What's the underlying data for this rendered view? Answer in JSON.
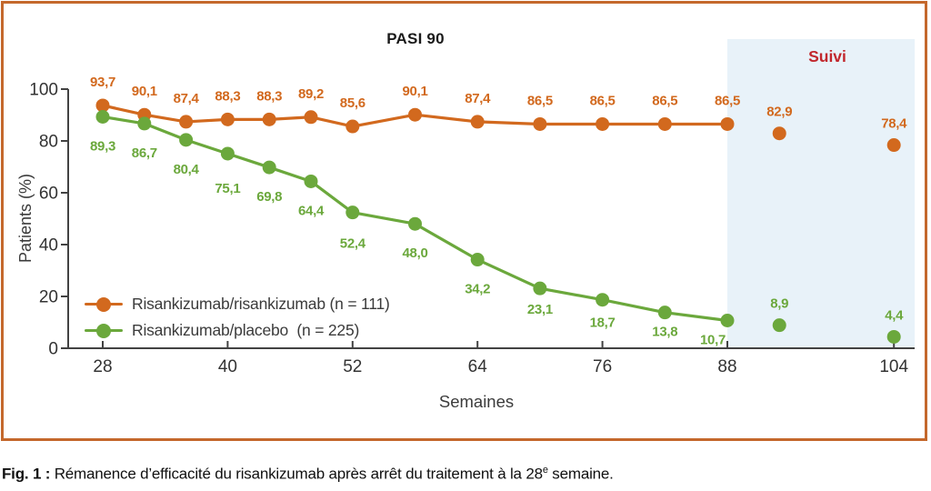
{
  "caption": {
    "bold": "Fig. 1 :",
    "text_before_sup": " Rémanence d’efficacité du risankizumab après arrêt du traitement à la 28",
    "sup": "e",
    "text_after_sup": " semaine."
  },
  "colors": {
    "frame_border": "#c4682c",
    "axis": "#424242",
    "tick_text": "#333333",
    "followup_fill": "#e8f2f9",
    "followup_label": "#c1272d",
    "series_orange": "#d2691e",
    "series_green": "#6ba83c"
  },
  "chart_data": {
    "type": "line",
    "title": "PASI 90",
    "xlabel": "Semaines",
    "ylabel": "Patients (%)",
    "x_ticks": [
      28,
      40,
      52,
      64,
      76,
      88,
      104
    ],
    "y_ticks": [
      0,
      20,
      40,
      60,
      80,
      100
    ],
    "xlim": [
      24.7,
      106
    ],
    "ylim": [
      0,
      100
    ],
    "grid": false,
    "legend_position": "inside-lower-left",
    "followup": {
      "label": "Suivi",
      "start_week": 88,
      "end_week": 106,
      "fill": "#e8f2f9",
      "label_color": "#c1272d"
    },
    "series": [
      {
        "name": "Risankizumab/risankizumab (n = 111)",
        "color": "#d2691e",
        "label_position": "above",
        "points": [
          {
            "week": 28,
            "value": 93.7,
            "label": "93,7"
          },
          {
            "week": 32,
            "value": 90.1,
            "label": "90,1"
          },
          {
            "week": 36,
            "value": 87.4,
            "label": "87,4"
          },
          {
            "week": 40,
            "value": 88.3,
            "label": "88,3"
          },
          {
            "week": 44,
            "value": 88.3,
            "label": "88,3"
          },
          {
            "week": 48,
            "value": 89.2,
            "label": "89,2"
          },
          {
            "week": 52,
            "value": 85.6,
            "label": "85,6"
          },
          {
            "week": 58,
            "value": 90.1,
            "label": "90,1"
          },
          {
            "week": 64,
            "value": 87.4,
            "label": "87,4"
          },
          {
            "week": 70,
            "value": 86.5,
            "label": "86,5"
          },
          {
            "week": 76,
            "value": 86.5,
            "label": "86,5"
          },
          {
            "week": 82,
            "value": 86.5,
            "label": "86,5"
          },
          {
            "week": 88,
            "value": 86.5,
            "label": "86,5"
          }
        ],
        "followup_points": [
          {
            "week": 93,
            "value": 82.9,
            "label": "82,9"
          },
          {
            "week": 104,
            "value": 78.4,
            "label": "78,4"
          }
        ]
      },
      {
        "name": "Risankizumab/placebo  (n = 225)",
        "color": "#6ba83c",
        "label_position": "below",
        "points": [
          {
            "week": 28,
            "value": 89.3,
            "label": "89,3"
          },
          {
            "week": 32,
            "value": 86.7,
            "label": "86,7"
          },
          {
            "week": 36,
            "value": 80.4,
            "label": "80,4"
          },
          {
            "week": 40,
            "value": 75.1,
            "label": "75,1",
            "label_dy": 38
          },
          {
            "week": 44,
            "value": 69.8,
            "label": "69,8"
          },
          {
            "week": 48,
            "value": 64.4,
            "label": "64,4"
          },
          {
            "week": 52,
            "value": 52.4,
            "label": "52,4",
            "label_dy": 34
          },
          {
            "week": 58,
            "value": 48.0,
            "label": "48,0"
          },
          {
            "week": 64,
            "value": 34.2,
            "label": "34,2"
          },
          {
            "week": 70,
            "value": 23.1,
            "label": "23,1",
            "label_dy": 23
          },
          {
            "week": 76,
            "value": 18.7,
            "label": "18,7",
            "label_dy": 25
          },
          {
            "week": 82,
            "value": 13.8,
            "label": "13,8",
            "label_dy": 21
          },
          {
            "week": 88,
            "value": 10.7,
            "label": "10,7",
            "label_dy": 21,
            "label_dx": -16
          }
        ],
        "followup_points": [
          {
            "week": 93,
            "value": 8.9,
            "label": "8,9"
          },
          {
            "week": 104,
            "value": 4.4,
            "label": "4,4"
          }
        ]
      }
    ]
  }
}
